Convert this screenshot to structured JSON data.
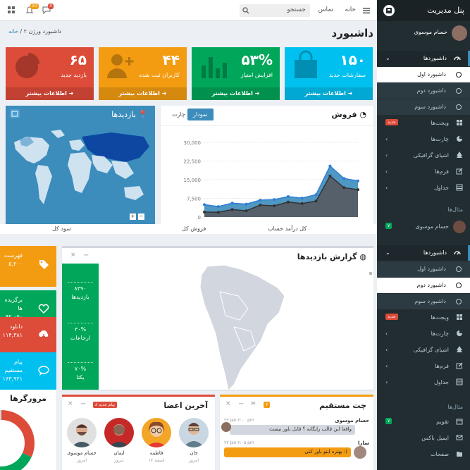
{
  "topbar": {
    "home_label": "خانه",
    "contact_label": "تماس",
    "search_placeholder": "جستجو",
    "notif_count": "10",
    "message_count": "4",
    "colors": {
      "notif": "#f39c12",
      "message": "#dd4b39"
    }
  },
  "page": {
    "title": "داشبورد",
    "breadcrumb_home": "خانه",
    "breadcrumb_current": "داشبورد ورژن ۲"
  },
  "stat_boxes": [
    {
      "number": "۱۵۰",
      "label": "سفارشات جدید",
      "footer": "اطلاعات بیشتر",
      "color": "#00c0ef",
      "icon": "shopping-bag-icon"
    },
    {
      "number": "۵۳%",
      "label": "افزایش امتیاز",
      "footer": "اطلاعات بیشتر",
      "color": "#00a65a",
      "icon": "bar-chart-icon"
    },
    {
      "number": "۴۴",
      "label": "کاربران ثبت شده",
      "footer": "اطلاعات بیشتر",
      "color": "#f39c12",
      "icon": "user-plus-icon"
    },
    {
      "number": "۶۵",
      "label": "بازدید جدید",
      "footer": "اطلاعات بیشتر",
      "color": "#dd4b39",
      "icon": "pie-chart-icon"
    }
  ],
  "sales": {
    "title": "فروش",
    "tab_active": "نمودار",
    "tab_inactive": "چارت"
  },
  "visitors_map": {
    "title": "بازدیدها"
  },
  "chart_data": {
    "type": "area",
    "title": "",
    "xlabel": "",
    "ylabel": "",
    "ylim": [
      0,
      30000
    ],
    "yticks": [
      "0",
      "7,500",
      "15,000",
      "22,500",
      "30,000"
    ],
    "series": [
      {
        "values": [
          5000,
          4200,
          5600,
          5200,
          6800,
          7000,
          8200,
          7600,
          9000,
          20500,
          15500,
          14500
        ],
        "color": "#3c8dbc"
      },
      {
        "values": [
          2000,
          1900,
          3000,
          2500,
          4800,
          4500,
          6000,
          5400,
          6400,
          16500,
          11800,
          11000
        ],
        "color": "#555d66"
      }
    ]
  },
  "kpi_row": [
    "کل درآمد حساب",
    "فروش کل",
    "سود کل"
  ],
  "visit_report": {
    "title": "گزارش بازدیدها",
    "stats": [
      {
        "value": "۸۳۹۰",
        "label": "بازدیدها"
      },
      {
        "value": "۳۰%",
        "label": "ارجاعات"
      },
      {
        "value": "۷۰%",
        "label": "یکتا"
      }
    ]
  },
  "info_strips": [
    {
      "title": "فهرست",
      "value": "۵,۲۰۰",
      "color": "#f39c12",
      "icon": "tag-icon"
    },
    {
      "title": "برگزیده ها",
      "value": "۹۲,۰۵۰",
      "color": "#00a65a",
      "icon": "heart-icon"
    },
    {
      "title": "دانلود",
      "value": "۱۱۴,۳۸۱",
      "color": "#dd4b39",
      "icon": "download-icon"
    },
    {
      "title": "پیام مستقیم",
      "value": "۱۶۳,۹۲۱",
      "color": "#00c0ef",
      "icon": "comment-icon"
    }
  ],
  "browsers": {
    "title": "مرورگرها"
  },
  "chat": {
    "title": "چت مستقیم",
    "badge": "۳",
    "messages": [
      {
        "name": "حسام موسوی",
        "time": "۲۳ Jan ۲:۰۰ pm",
        "text": "واقعا این قالب رایگانه ؟ قابل باور نیست"
      },
      {
        "name": "سارا",
        "time": "۲۳ Jan ۲:۰۵ pm",
        "text": "بهتره اینو باور کنی :)"
      }
    ]
  },
  "members": {
    "title": "آخرین اعضا",
    "badge": "۸ پیام جدید",
    "list": [
      {
        "name": "جان",
        "date": "امروز"
      },
      {
        "name": "فاطمه",
        "date": "۱۷ اسفند"
      },
      {
        "name": "ایمان",
        "date": "دیروز"
      },
      {
        "name": "حسام موسوی",
        "date": "امروز"
      }
    ]
  },
  "sidebar": {
    "brand": "پنل مدیریت",
    "user_name": "حسام موسوی",
    "menu1": [
      {
        "label": "داشبوردها",
        "icon": "dashboard-icon",
        "type": "open"
      },
      {
        "label": "داشبورد اول",
        "type": "sub-selected"
      },
      {
        "label": "داشبورد دوم",
        "type": "sub"
      },
      {
        "label": "داشبورد سوم",
        "type": "sub"
      },
      {
        "label": "ویجت‌ها",
        "icon": "widgets-icon",
        "badge": "جدید",
        "badge_color": "#dd4b39"
      },
      {
        "label": "چارت‌ها",
        "icon": "pie-icon"
      },
      {
        "label": "اشیای گرافیکی",
        "icon": "tree-icon"
      },
      {
        "label": "فرم‌ها",
        "icon": "edit-icon"
      },
      {
        "label": "جداول",
        "icon": "table-icon"
      }
    ],
    "examples_label": "مثال‌ها",
    "example_user": "حسام موسوی",
    "example_badge": "۷",
    "menu2": [
      {
        "label": "داشبوردها",
        "icon": "dashboard-icon",
        "type": "open"
      },
      {
        "label": "داشبورد اول",
        "type": "sub"
      },
      {
        "label": "داشبورد دوم",
        "type": "sub-selected"
      },
      {
        "label": "داشبورد سوم",
        "type": "sub"
      },
      {
        "label": "ویجت‌ها",
        "icon": "widgets-icon",
        "badge": "جدید",
        "badge_color": "#dd4b39"
      },
      {
        "label": "چارت‌ها",
        "icon": "pie-icon"
      },
      {
        "label": "اشیای گرافیکی",
        "icon": "tree-icon"
      },
      {
        "label": "فرم‌ها",
        "icon": "edit-icon"
      },
      {
        "label": "جداول",
        "icon": "table-icon"
      }
    ],
    "examples2_label": "مثال‌ها",
    "menu3": [
      {
        "label": "تقویم",
        "icon": "calendar-icon",
        "badge": "۷",
        "badge_color": "#00a65a"
      },
      {
        "label": "ایمیل باکس",
        "icon": "envelope-icon"
      },
      {
        "label": "صفحات",
        "icon": "folder-icon"
      }
    ]
  }
}
